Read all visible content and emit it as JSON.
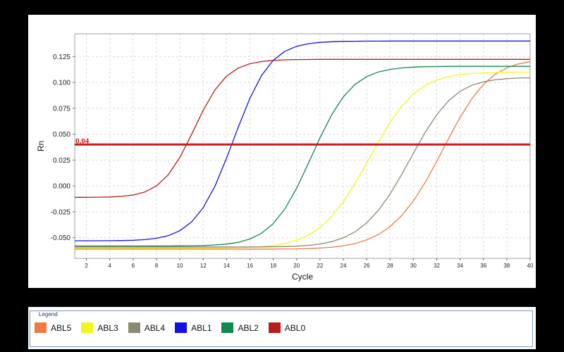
{
  "chart_data": {
    "type": "line",
    "xlabel": "Cycle",
    "ylabel": "Rn",
    "xlim": [
      1,
      40
    ],
    "ylim": [
      -0.07,
      0.147
    ],
    "xticks": [
      2,
      4,
      6,
      8,
      10,
      12,
      14,
      16,
      18,
      20,
      22,
      24,
      26,
      28,
      30,
      32,
      34,
      36,
      38,
      40
    ],
    "yticks": [
      -0.05,
      -0.025,
      0.0,
      0.025,
      0.05,
      0.075,
      0.1,
      0.125
    ],
    "ytick_labels": [
      "-0.050",
      "-0.025",
      "0.000",
      "0.025",
      "0.050",
      "0.075",
      "0.100",
      "0.125"
    ],
    "grid": true,
    "threshold": {
      "value": 0.04,
      "label": "0.04",
      "color": "#cc1a1a"
    },
    "x": [
      1,
      2,
      3,
      4,
      5,
      6,
      7,
      8,
      9,
      10,
      11,
      12,
      13,
      14,
      15,
      16,
      17,
      18,
      19,
      20,
      21,
      22,
      23,
      24,
      25,
      26,
      27,
      28,
      29,
      30,
      31,
      32,
      33,
      34,
      35,
      36,
      37,
      38,
      39,
      40
    ],
    "series": [
      {
        "name": "ABL5",
        "color": "#f07a45",
        "values": [
          -0.061,
          -0.061,
          -0.061,
          -0.061,
          -0.061,
          -0.061,
          -0.061,
          -0.061,
          -0.061,
          -0.061,
          -0.061,
          -0.061,
          -0.061,
          -0.061,
          -0.061,
          -0.061,
          -0.061,
          -0.061,
          -0.0609,
          -0.0608,
          -0.0605,
          -0.06,
          -0.0592,
          -0.0578,
          -0.0557,
          -0.0522,
          -0.047,
          -0.0394,
          -0.0286,
          -0.0144,
          0.0032,
          0.0237,
          0.0455,
          0.0663,
          0.0842,
          0.098,
          0.1078,
          0.1141,
          0.1179,
          0.12
        ]
      },
      {
        "name": "ABL3",
        "color": "#f5f51e",
        "values": [
          -0.06,
          -0.06,
          -0.06,
          -0.06,
          -0.06,
          -0.06,
          -0.06,
          -0.06,
          -0.06,
          -0.06,
          -0.06,
          -0.06,
          -0.0599,
          -0.0598,
          -0.0596,
          -0.0593,
          -0.0587,
          -0.0576,
          -0.0557,
          -0.0526,
          -0.0477,
          -0.0402,
          -0.0295,
          -0.0153,
          0.0022,
          0.0219,
          0.0423,
          0.0613,
          0.077,
          0.0889,
          0.0971,
          0.1024,
          0.1056,
          0.1075,
          0.1086,
          0.1092,
          0.1096,
          0.1098,
          0.1099,
          0.1099
        ]
      },
      {
        "name": "ABL4",
        "color": "#8c8a72",
        "values": [
          -0.059,
          -0.059,
          -0.059,
          -0.059,
          -0.059,
          -0.059,
          -0.059,
          -0.059,
          -0.059,
          -0.059,
          -0.059,
          -0.059,
          -0.059,
          -0.059,
          -0.059,
          -0.059,
          -0.0589,
          -0.0588,
          -0.0586,
          -0.0582,
          -0.0574,
          -0.0561,
          -0.0539,
          -0.0502,
          -0.0444,
          -0.0357,
          -0.0236,
          -0.0079,
          0.011,
          0.0316,
          0.0515,
          0.0688,
          0.0822,
          0.0914,
          0.0972,
          0.1006,
          0.1025,
          0.1036,
          0.1042,
          0.1045
        ]
      },
      {
        "name": "ABL1",
        "color": "#1212e6",
        "values": [
          -0.053,
          -0.053,
          -0.053,
          -0.0529,
          -0.0528,
          -0.0525,
          -0.0519,
          -0.0506,
          -0.0481,
          -0.0433,
          -0.0349,
          -0.0211,
          -0.0004,
          0.0267,
          0.0567,
          0.0847,
          0.1067,
          0.1214,
          0.1301,
          0.1349,
          0.1374,
          0.1387,
          0.1393,
          0.1397,
          0.1398,
          0.1399,
          0.1399,
          0.14,
          0.14,
          0.14,
          0.14,
          0.14,
          0.14,
          0.14,
          0.14,
          0.14,
          0.14,
          0.14,
          0.14,
          0.14
        ]
      },
      {
        "name": "ABL2",
        "color": "#108a4e",
        "values": [
          -0.058,
          -0.058,
          -0.058,
          -0.058,
          -0.058,
          -0.058,
          -0.058,
          -0.058,
          -0.058,
          -0.0579,
          -0.0578,
          -0.0576,
          -0.0571,
          -0.0562,
          -0.0545,
          -0.0513,
          -0.0457,
          -0.0364,
          -0.0221,
          -0.0023,
          0.0216,
          0.0464,
          0.0687,
          0.0861,
          0.0981,
          0.1056,
          0.1101,
          0.1126,
          0.114,
          0.1148,
          0.1152,
          0.1154,
          0.1155,
          0.1156,
          0.1156,
          0.1156,
          0.1156,
          0.1156,
          0.1156,
          0.1156
        ]
      },
      {
        "name": "ABL0",
        "color": "#b81c1c",
        "values": [
          -0.011,
          -0.011,
          -0.0109,
          -0.0107,
          -0.0101,
          -0.0088,
          -0.0059,
          0.0,
          0.0106,
          0.0274,
          0.0496,
          0.073,
          0.0927,
          0.1061,
          0.1139,
          0.1181,
          0.1202,
          0.1213,
          0.1218,
          0.1221,
          0.1222,
          0.1223,
          0.1223,
          0.1223,
          0.1223,
          0.1223,
          0.1223,
          0.1223,
          0.1223,
          0.1223,
          0.1223,
          0.1223,
          0.1223,
          0.1223,
          0.1223,
          0.1223,
          0.1223,
          0.1223,
          0.1223,
          0.1223
        ]
      }
    ]
  },
  "legend": {
    "title": "Legend",
    "items": [
      {
        "label": "ABL5",
        "color": "#f07a45"
      },
      {
        "label": "ABL3",
        "color": "#f5f51e"
      },
      {
        "label": "ABL4",
        "color": "#8c8a72"
      },
      {
        "label": "ABL1",
        "color": "#1212e6"
      },
      {
        "label": "ABL2",
        "color": "#108a4e"
      },
      {
        "label": "ABL0",
        "color": "#b81c1c"
      }
    ]
  }
}
